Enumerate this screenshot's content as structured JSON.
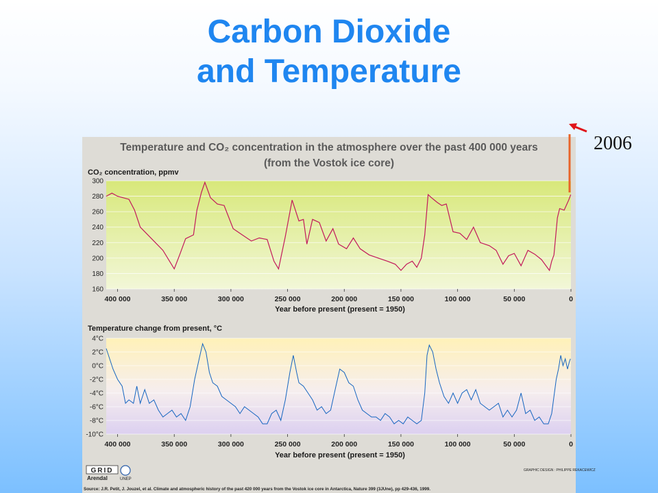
{
  "slide": {
    "title_line1": "Carbon Dioxide",
    "title_line2": "and Temperature",
    "year_annotation": "2006"
  },
  "figure": {
    "title_line1": "Temperature and CO₂ concentration in the atmosphere over the past 400 000 years",
    "title_line2": "(from the Vostok ice core)",
    "logo_grid": "GRID",
    "logo_arendal": "Arendal",
    "logo_unep": "UNEP",
    "credit": "GRAPHIC DESIGN : PHILIPPE REKACEWICZ",
    "source": "Source: J.R. Petit, J. Jouzel, et al. Climate and atmospheric history of the past 420 000 years from the Vostok ice core in Antarctica, Nature 399 (3JUne), pp 429-436, 1999."
  },
  "colors": {
    "co2_line": "#c2185b",
    "temp_line": "#1565c0",
    "annotation": "#e8642a"
  },
  "chart_data": [
    {
      "type": "line",
      "ylabel": "CO₂ concentration, ppmv",
      "xlabel": "Year before present (present = 1950)",
      "xlim": [
        410000,
        0
      ],
      "ylim": [
        160,
        300
      ],
      "x_ticks": [
        400000,
        350000,
        300000,
        250000,
        200000,
        150000,
        100000,
        50000,
        0
      ],
      "x_tick_labels": [
        "400 000",
        "350 000",
        "300 000",
        "250 000",
        "200 000",
        "150 000",
        "100 000",
        "50 000",
        "0"
      ],
      "y_ticks": [
        160,
        180,
        200,
        220,
        240,
        260,
        280,
        300
      ],
      "y_tick_labels": [
        "160",
        "180",
        "200",
        "220",
        "240",
        "260",
        "280",
        "300"
      ],
      "grid": true,
      "series": [
        {
          "x": [
            412000,
            405000,
            400000,
            390000,
            385000,
            380000,
            370000,
            360000,
            350000,
            345000,
            340000,
            333000,
            330000,
            326000,
            323000,
            318000,
            312000,
            306000,
            298000,
            290000,
            282000,
            275000,
            268000,
            262000,
            258000,
            252000,
            246000,
            240000,
            236000,
            233000,
            228000,
            222000,
            216000,
            210000,
            205000,
            198000,
            192000,
            186000,
            178000,
            170000,
            162000,
            155000,
            150000,
            145000,
            140000,
            136000,
            132000,
            129000,
            126000,
            123000,
            118000,
            114000,
            110000,
            104000,
            98000,
            92000,
            86000,
            80000,
            72000,
            66000,
            60000,
            55000,
            50000,
            44000,
            38000,
            32000,
            26000,
            22000,
            19000,
            17000,
            15000,
            12000,
            10000,
            6000,
            2000,
            200
          ],
          "values": [
            280,
            284,
            280,
            276,
            262,
            240,
            225,
            210,
            186,
            205,
            225,
            230,
            262,
            285,
            298,
            278,
            270,
            268,
            238,
            230,
            222,
            226,
            224,
            196,
            186,
            228,
            275,
            248,
            250,
            218,
            250,
            246,
            222,
            238,
            218,
            212,
            226,
            212,
            204,
            200,
            196,
            192,
            184,
            192,
            196,
            188,
            200,
            230,
            282,
            278,
            272,
            268,
            270,
            234,
            232,
            224,
            240,
            220,
            216,
            210,
            192,
            203,
            206,
            190,
            210,
            205,
            198,
            190,
            184,
            196,
            204,
            252,
            264,
            262,
            275,
            282
          ]
        }
      ]
    },
    {
      "type": "line",
      "ylabel": "Temperature change from present, °C",
      "xlabel": "Year before present (present = 1950)",
      "xlim": [
        410000,
        0
      ],
      "ylim": [
        -10,
        4
      ],
      "x_ticks": [
        400000,
        350000,
        300000,
        250000,
        200000,
        150000,
        100000,
        50000,
        0
      ],
      "x_tick_labels": [
        "400 000",
        "350 000",
        "300 000",
        "250 000",
        "200 000",
        "150 000",
        "100 000",
        "50 000",
        "0"
      ],
      "y_ticks": [
        4,
        2,
        0,
        -2,
        -4,
        -6,
        -8,
        -10
      ],
      "y_tick_labels": [
        "4°C",
        "2°C",
        "0°C",
        "-2°C",
        "-4°C",
        "-6°C",
        "-8°C",
        "-10°C"
      ],
      "grid": true,
      "series": [
        {
          "x": [
            412000,
            408000,
            404000,
            400000,
            396000,
            393000,
            390000,
            386000,
            383000,
            380000,
            376000,
            372000,
            368000,
            364000,
            360000,
            356000,
            352000,
            348000,
            344000,
            340000,
            336000,
            332000,
            328000,
            325000,
            322000,
            319000,
            316000,
            312000,
            308000,
            304000,
            300000,
            296000,
            292000,
            288000,
            284000,
            280000,
            276000,
            272000,
            268000,
            264000,
            260000,
            256000,
            252000,
            248000,
            245000,
            242000,
            240000,
            236000,
            232000,
            228000,
            224000,
            220000,
            216000,
            212000,
            208000,
            204000,
            200000,
            196000,
            192000,
            188000,
            184000,
            180000,
            176000,
            172000,
            168000,
            164000,
            160000,
            156000,
            152000,
            148000,
            144000,
            140000,
            136000,
            132000,
            129000,
            127000,
            125000,
            122000,
            119000,
            116000,
            112000,
            108000,
            104000,
            100000,
            96000,
            92000,
            88000,
            84000,
            80000,
            76000,
            72000,
            68000,
            64000,
            60000,
            56000,
            52000,
            48000,
            44000,
            40000,
            36000,
            32000,
            28000,
            24000,
            20000,
            17000,
            15000,
            13000,
            11000,
            9000,
            7000,
            5000,
            3000,
            1500,
            500
          ],
          "values": [
            2.5,
            1.5,
            -0.5,
            -2,
            -3,
            -5.5,
            -5,
            -5.5,
            -3,
            -5.5,
            -3.5,
            -5.5,
            -5,
            -6.5,
            -7.5,
            -7,
            -6.5,
            -7.5,
            -7,
            -8,
            -6,
            -2,
            1,
            3.2,
            2,
            -1,
            -2.5,
            -3,
            -4.5,
            -5,
            -5.5,
            -6,
            -7,
            -6,
            -6.5,
            -7,
            -7.5,
            -8.5,
            -8.5,
            -7,
            -6.5,
            -8,
            -5,
            -1,
            1.5,
            -1,
            -2.5,
            -3,
            -4,
            -5,
            -6.5,
            -6,
            -7,
            -6.5,
            -3.5,
            -0.5,
            -1,
            -2.5,
            -3,
            -5,
            -6.5,
            -7,
            -7.5,
            -7.5,
            -8,
            -7,
            -7.5,
            -8.5,
            -8,
            -8.5,
            -7.5,
            -8,
            -8.5,
            -8,
            -4,
            1.5,
            3,
            2,
            -0.5,
            -2.5,
            -4.5,
            -5.5,
            -4,
            -5.5,
            -4,
            -3.5,
            -5,
            -3.5,
            -5.5,
            -6,
            -6.5,
            -6,
            -5.5,
            -7.5,
            -6.5,
            -7.5,
            -6.5,
            -4,
            -7,
            -6.5,
            -8,
            -7.5,
            -8.5,
            -8.5,
            -7,
            -4.5,
            -2,
            -0.5,
            1.5,
            0,
            1,
            -0.5,
            0.5,
            1
          ]
        }
      ]
    }
  ]
}
